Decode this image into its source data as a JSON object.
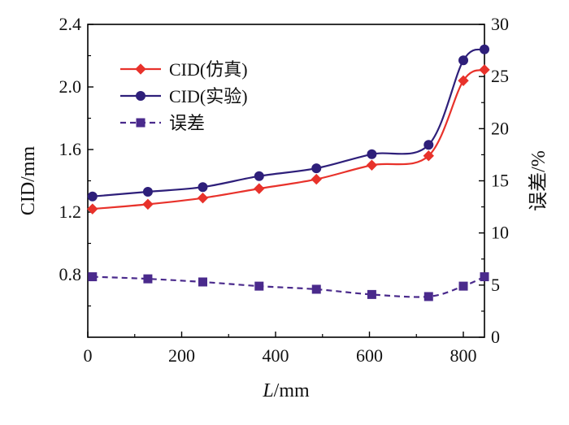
{
  "chart_data": {
    "type": "line",
    "x": [
      10,
      128,
      245,
      365,
      487,
      605,
      726,
      800,
      845
    ],
    "xlabel_italic": "L",
    "xlabel_unit": "/mm",
    "ylabel": "CID/mm",
    "y2label": "误差/%",
    "xlim": [
      0,
      845
    ],
    "ylim": [
      0.4,
      2.4
    ],
    "y2lim": [
      0,
      30
    ],
    "xticks": [
      "0",
      "200",
      "400",
      "600",
      "800"
    ],
    "yticks": [
      "0.8",
      "1.2",
      "1.6",
      "2.0",
      "2.4"
    ],
    "y2ticks": [
      "0",
      "5",
      "10",
      "15",
      "20",
      "25",
      "30"
    ],
    "grid": false,
    "legend_position": "top-left",
    "series": [
      {
        "name": "CID(仿真)",
        "axis": "left",
        "color": "#e8322b",
        "marker": "diamond",
        "values": [
          1.22,
          1.25,
          1.29,
          1.35,
          1.41,
          1.5,
          1.56,
          2.04,
          2.11
        ]
      },
      {
        "name": "CID(实验)",
        "axis": "left",
        "color": "#2e1f7a",
        "marker": "circle",
        "values": [
          1.3,
          1.33,
          1.36,
          1.43,
          1.48,
          1.57,
          1.63,
          2.17,
          2.24
        ]
      },
      {
        "name": "误差",
        "axis": "right",
        "color": "#4a2a8c",
        "marker": "square",
        "dashed": true,
        "values": [
          5.8,
          5.6,
          5.3,
          4.9,
          4.6,
          4.1,
          3.9,
          4.9,
          5.8
        ]
      }
    ]
  }
}
